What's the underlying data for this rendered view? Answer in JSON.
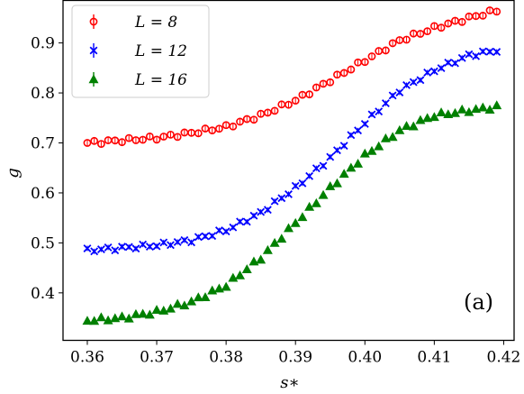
{
  "chart_data": {
    "type": "scatter",
    "panel_label": "(a)",
    "xlabel": "s∗",
    "ylabel": "g",
    "xlim": [
      0.3565,
      0.4215
    ],
    "ylim": [
      0.305,
      0.985
    ],
    "xticks": [
      0.36,
      0.37,
      0.38,
      0.39,
      0.4,
      0.41,
      0.42
    ],
    "xtick_labels": [
      "0.36",
      "0.37",
      "0.38",
      "0.39",
      "0.40",
      "0.41",
      "0.42"
    ],
    "yticks": [
      0.4,
      0.5,
      0.6,
      0.7,
      0.8,
      0.9
    ],
    "ytick_labels": [
      "0.4",
      "0.5",
      "0.6",
      "0.7",
      "0.8",
      "0.9"
    ],
    "grid": false,
    "legend_position": "top-left",
    "series": [
      {
        "name": "L = 8",
        "color": "#ff0000",
        "marker": "circle",
        "x": [
          0.36,
          0.37,
          0.375,
          0.38,
          0.385,
          0.39,
          0.395,
          0.4,
          0.405,
          0.41,
          0.415,
          0.419
        ],
        "y": [
          0.7,
          0.71,
          0.72,
          0.732,
          0.755,
          0.785,
          0.825,
          0.865,
          0.905,
          0.93,
          0.95,
          0.965
        ]
      },
      {
        "name": "L = 12",
        "color": "#0000ff",
        "marker": "x",
        "x": [
          0.36,
          0.365,
          0.37,
          0.375,
          0.38,
          0.385,
          0.39,
          0.395,
          0.4,
          0.405,
          0.41,
          0.415,
          0.419
        ],
        "y": [
          0.485,
          0.49,
          0.495,
          0.505,
          0.525,
          0.56,
          0.61,
          0.67,
          0.74,
          0.805,
          0.845,
          0.875,
          0.885
        ]
      },
      {
        "name": "L = 16",
        "color": "#008000",
        "marker": "triangle",
        "x": [
          0.36,
          0.365,
          0.37,
          0.375,
          0.38,
          0.385,
          0.39,
          0.395,
          0.4,
          0.405,
          0.41,
          0.415,
          0.419
        ],
        "y": [
          0.345,
          0.35,
          0.362,
          0.382,
          0.415,
          0.47,
          0.54,
          0.61,
          0.675,
          0.725,
          0.755,
          0.765,
          0.772
        ]
      }
    ]
  }
}
